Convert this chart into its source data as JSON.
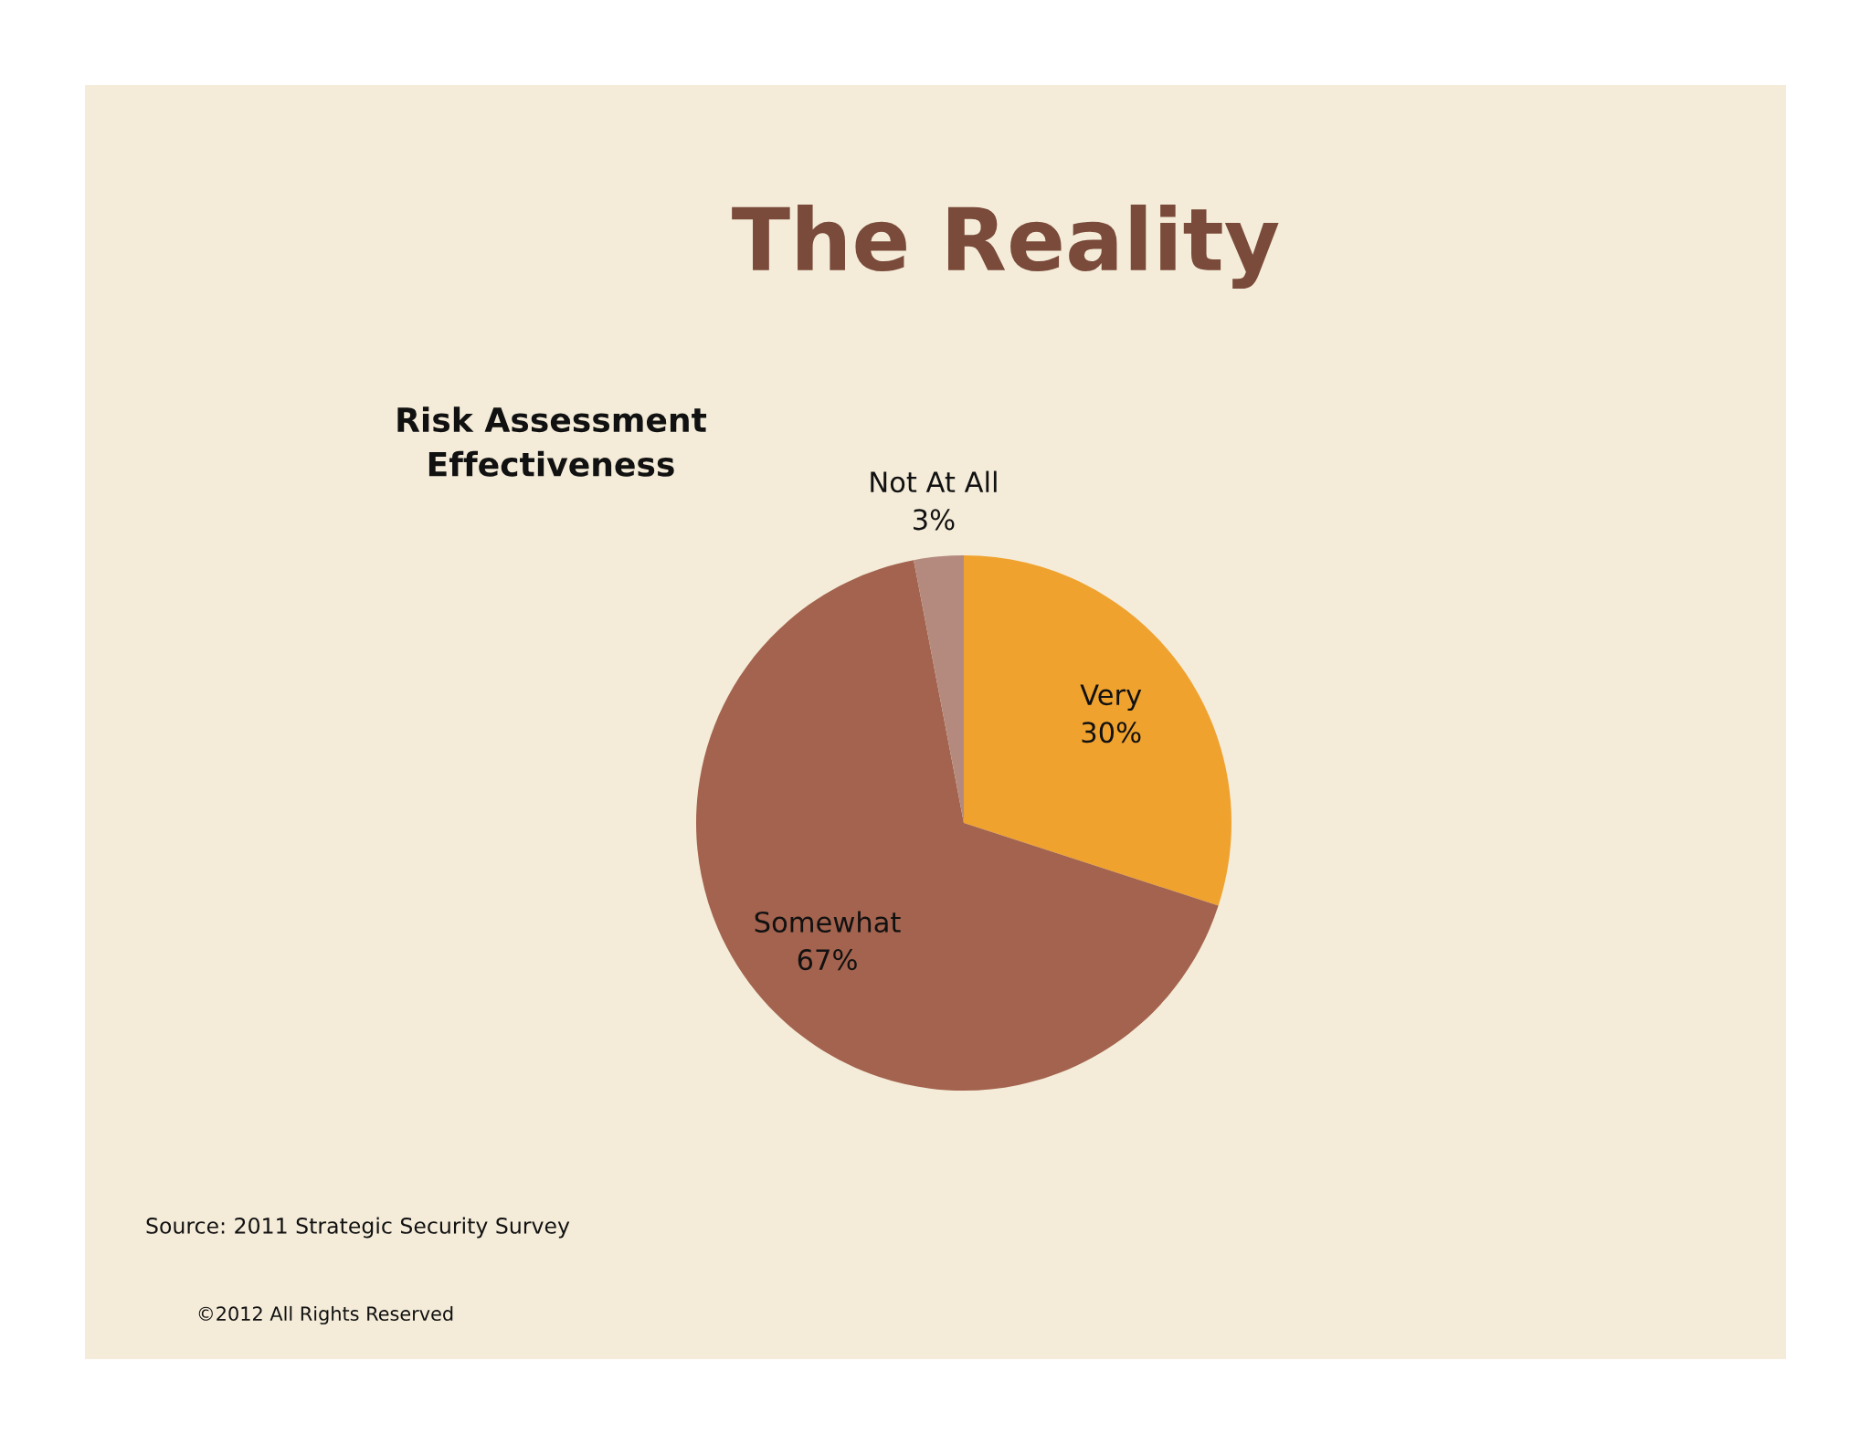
{
  "chart_data": {
    "type": "pie",
    "title": "The Reality",
    "subtitle": "Risk Assessment\nEffectiveness",
    "categories": [
      "Very",
      "Somewhat",
      "Not At All"
    ],
    "values": [
      30,
      67,
      3
    ],
    "colors": [
      "#f0a22e",
      "#a3634e",
      "#b48a7e"
    ],
    "value_labels": [
      "30%",
      "67%",
      "3%"
    ],
    "legend": false,
    "annotations": [
      "Source: 2011 Strategic Security Survey",
      "©2012 All Rights Reserved"
    ]
  }
}
